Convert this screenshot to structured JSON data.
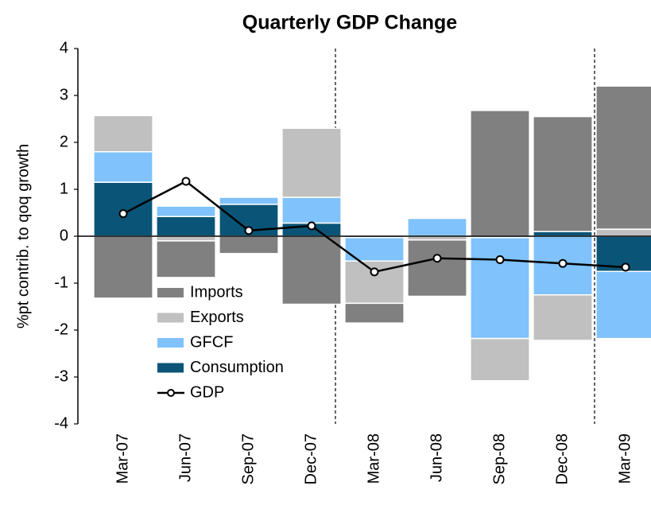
{
  "chart_data": {
    "type": "bar",
    "title": "Quarterly GDP Change",
    "y_axis_label": "%pt contrib. to qoq growth",
    "categories": [
      "Mar-07",
      "Jun-07",
      "Sep-07",
      "Dec-07",
      "Mar-08",
      "Jun-08",
      "Sep-08",
      "Dec-08",
      "Mar-09"
    ],
    "ylim": [
      -4,
      4
    ],
    "yticks": [
      -4,
      -3,
      -2,
      -1,
      0,
      1,
      2,
      3,
      4
    ],
    "stacked": true,
    "series": [
      {
        "name": "Consumption",
        "color": "#0a5577",
        "values": [
          1.15,
          0.42,
          0.68,
          0.28,
          -0.03,
          0,
          -0.03,
          0.1,
          -0.75
        ]
      },
      {
        "name": "GFCF",
        "color": "#80c2fb",
        "values": [
          0.65,
          0.22,
          0.15,
          0.55,
          -0.5,
          0.38,
          -2.15,
          -1.25,
          -1.43
        ]
      },
      {
        "name": "Exports",
        "color": "#c0c0c0",
        "values": [
          0.77,
          -0.1,
          0,
          1.47,
          -0.9,
          -0.08,
          -0.9,
          -0.97,
          0.15
        ]
      },
      {
        "name": "Imports",
        "color": "#808080",
        "values": [
          -1.32,
          -0.78,
          -0.37,
          -1.45,
          -0.42,
          -1.2,
          2.68,
          2.45,
          3.05
        ]
      },
      {
        "name": "GDP",
        "type": "line",
        "color": "#000000",
        "values": [
          0.48,
          1.17,
          0.12,
          0.22,
          -0.76,
          -0.47,
          -0.5,
          -0.58,
          -0.66
        ]
      }
    ]
  }
}
